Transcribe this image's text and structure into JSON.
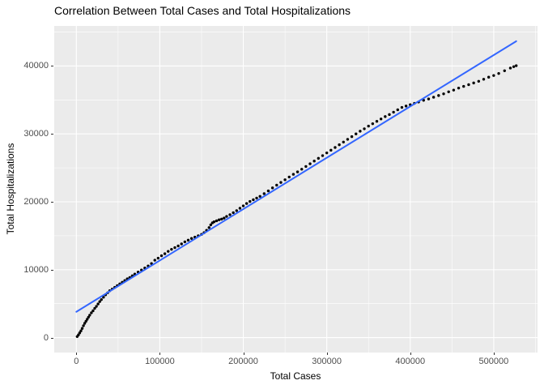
{
  "title": "Correlation Between Total Cases and Total Hospitalizations",
  "colors": {
    "panel_background": "#EBEBEB",
    "grid": "#FFFFFF",
    "points": "#000000",
    "trend_line": "#3366FF",
    "tick_text": "#4D4D4D",
    "title_text": "#000000"
  },
  "chart_data": {
    "type": "scatter",
    "title": "Correlation Between Total Cases and Total Hospitalizations",
    "xlabel": "Total Cases",
    "ylabel": "Total Hospitalizations",
    "xlim": [
      -26500,
      552500
    ],
    "ylim": [
      -2200,
      45900
    ],
    "grid": "on",
    "legend": "none",
    "x_ticks": [
      0,
      100000,
      200000,
      300000,
      400000,
      500000
    ],
    "x_tick_labels": [
      "0",
      "100000",
      "200000",
      "300000",
      "400000",
      "500000"
    ],
    "y_ticks": [
      0,
      10000,
      20000,
      30000,
      40000
    ],
    "y_tick_labels": [
      "0",
      "10000",
      "20000",
      "30000",
      "40000"
    ],
    "x_minor_ticks": [
      50000,
      150000,
      250000,
      350000,
      450000,
      550000
    ],
    "y_minor_ticks": [
      5000,
      15000,
      25000,
      35000,
      45000
    ],
    "series": [
      {
        "name": "observations",
        "type": "scatter",
        "color": "#000000",
        "point_radius": 1.7,
        "points": [
          [
            1000,
            150
          ],
          [
            2500,
            400
          ],
          [
            4000,
            700
          ],
          [
            5500,
            1000
          ],
          [
            7000,
            1350
          ],
          [
            8500,
            1750
          ],
          [
            10000,
            2100
          ],
          [
            11500,
            2400
          ],
          [
            13000,
            2700
          ],
          [
            14500,
            3000
          ],
          [
            16000,
            3300
          ],
          [
            18000,
            3650
          ],
          [
            20000,
            3950
          ],
          [
            22000,
            4300
          ],
          [
            24000,
            4600
          ],
          [
            26000,
            4950
          ],
          [
            28000,
            5300
          ],
          [
            30000,
            5600
          ],
          [
            32500,
            5950
          ],
          [
            35000,
            6300
          ],
          [
            37500,
            6600
          ],
          [
            40000,
            6900
          ],
          [
            43000,
            7150
          ],
          [
            46000,
            7400
          ],
          [
            49000,
            7650
          ],
          [
            52000,
            7900
          ],
          [
            55000,
            8150
          ],
          [
            58000,
            8400
          ],
          [
            61000,
            8650
          ],
          [
            64000,
            8850
          ],
          [
            67000,
            9100
          ],
          [
            70000,
            9350
          ],
          [
            74000,
            9650
          ],
          [
            78000,
            9950
          ],
          [
            82000,
            10250
          ],
          [
            86000,
            10550
          ],
          [
            90000,
            10900
          ],
          [
            94000,
            11400
          ],
          [
            98000,
            11700
          ],
          [
            102000,
            12050
          ],
          [
            106000,
            12350
          ],
          [
            110000,
            12700
          ],
          [
            114000,
            13000
          ],
          [
            118000,
            13250
          ],
          [
            122000,
            13500
          ],
          [
            126000,
            13800
          ],
          [
            130000,
            14100
          ],
          [
            134000,
            14350
          ],
          [
            138000,
            14600
          ],
          [
            142000,
            14800
          ],
          [
            146000,
            15000
          ],
          [
            150000,
            15200
          ],
          [
            153000,
            15450
          ],
          [
            156000,
            15800
          ],
          [
            159000,
            16200
          ],
          [
            161000,
            16600
          ],
          [
            163000,
            16900
          ],
          [
            165000,
            17050
          ],
          [
            168000,
            17200
          ],
          [
            171000,
            17350
          ],
          [
            174000,
            17450
          ],
          [
            177000,
            17600
          ],
          [
            180000,
            17850
          ],
          [
            184000,
            18100
          ],
          [
            188000,
            18400
          ],
          [
            192000,
            18700
          ],
          [
            196000,
            19050
          ],
          [
            200000,
            19400
          ],
          [
            204000,
            19750
          ],
          [
            208000,
            20050
          ],
          [
            212000,
            20300
          ],
          [
            216000,
            20550
          ],
          [
            220000,
            20800
          ],
          [
            225000,
            21200
          ],
          [
            230000,
            21600
          ],
          [
            235000,
            22050
          ],
          [
            240000,
            22450
          ],
          [
            245000,
            22850
          ],
          [
            250000,
            23250
          ],
          [
            255000,
            23650
          ],
          [
            260000,
            24050
          ],
          [
            265000,
            24400
          ],
          [
            270000,
            24800
          ],
          [
            275000,
            25200
          ],
          [
            280000,
            25600
          ],
          [
            285000,
            26000
          ],
          [
            290000,
            26400
          ],
          [
            295000,
            26800
          ],
          [
            300000,
            27200
          ],
          [
            305000,
            27600
          ],
          [
            310000,
            28000
          ],
          [
            315000,
            28400
          ],
          [
            320000,
            28800
          ],
          [
            325000,
            29200
          ],
          [
            330000,
            29600
          ],
          [
            335000,
            30000
          ],
          [
            340000,
            30400
          ],
          [
            345000,
            30750
          ],
          [
            350000,
            31150
          ],
          [
            355000,
            31500
          ],
          [
            360000,
            31850
          ],
          [
            365000,
            32200
          ],
          [
            370000,
            32550
          ],
          [
            375000,
            32850
          ],
          [
            380000,
            33200
          ],
          [
            385000,
            33550
          ],
          [
            390000,
            33900
          ],
          [
            395000,
            34100
          ],
          [
            400000,
            34300
          ],
          [
            405000,
            34500
          ],
          [
            410000,
            34700
          ],
          [
            416000,
            34950
          ],
          [
            422000,
            35150
          ],
          [
            428000,
            35400
          ],
          [
            434000,
            35650
          ],
          [
            440000,
            35900
          ],
          [
            446000,
            36200
          ],
          [
            452000,
            36450
          ],
          [
            458000,
            36750
          ],
          [
            464000,
            37000
          ],
          [
            470000,
            37250
          ],
          [
            476000,
            37500
          ],
          [
            482000,
            37750
          ],
          [
            488000,
            38050
          ],
          [
            494000,
            38350
          ],
          [
            500000,
            38600
          ],
          [
            506000,
            38900
          ],
          [
            513000,
            39300
          ],
          [
            520000,
            39700
          ],
          [
            524000,
            39900
          ],
          [
            527000,
            40050
          ]
        ]
      },
      {
        "name": "linear-fit",
        "type": "line",
        "color": "#3366FF",
        "line_width": 2,
        "points": [
          [
            0,
            3800
          ],
          [
            527000,
            43650
          ]
        ]
      }
    ]
  }
}
